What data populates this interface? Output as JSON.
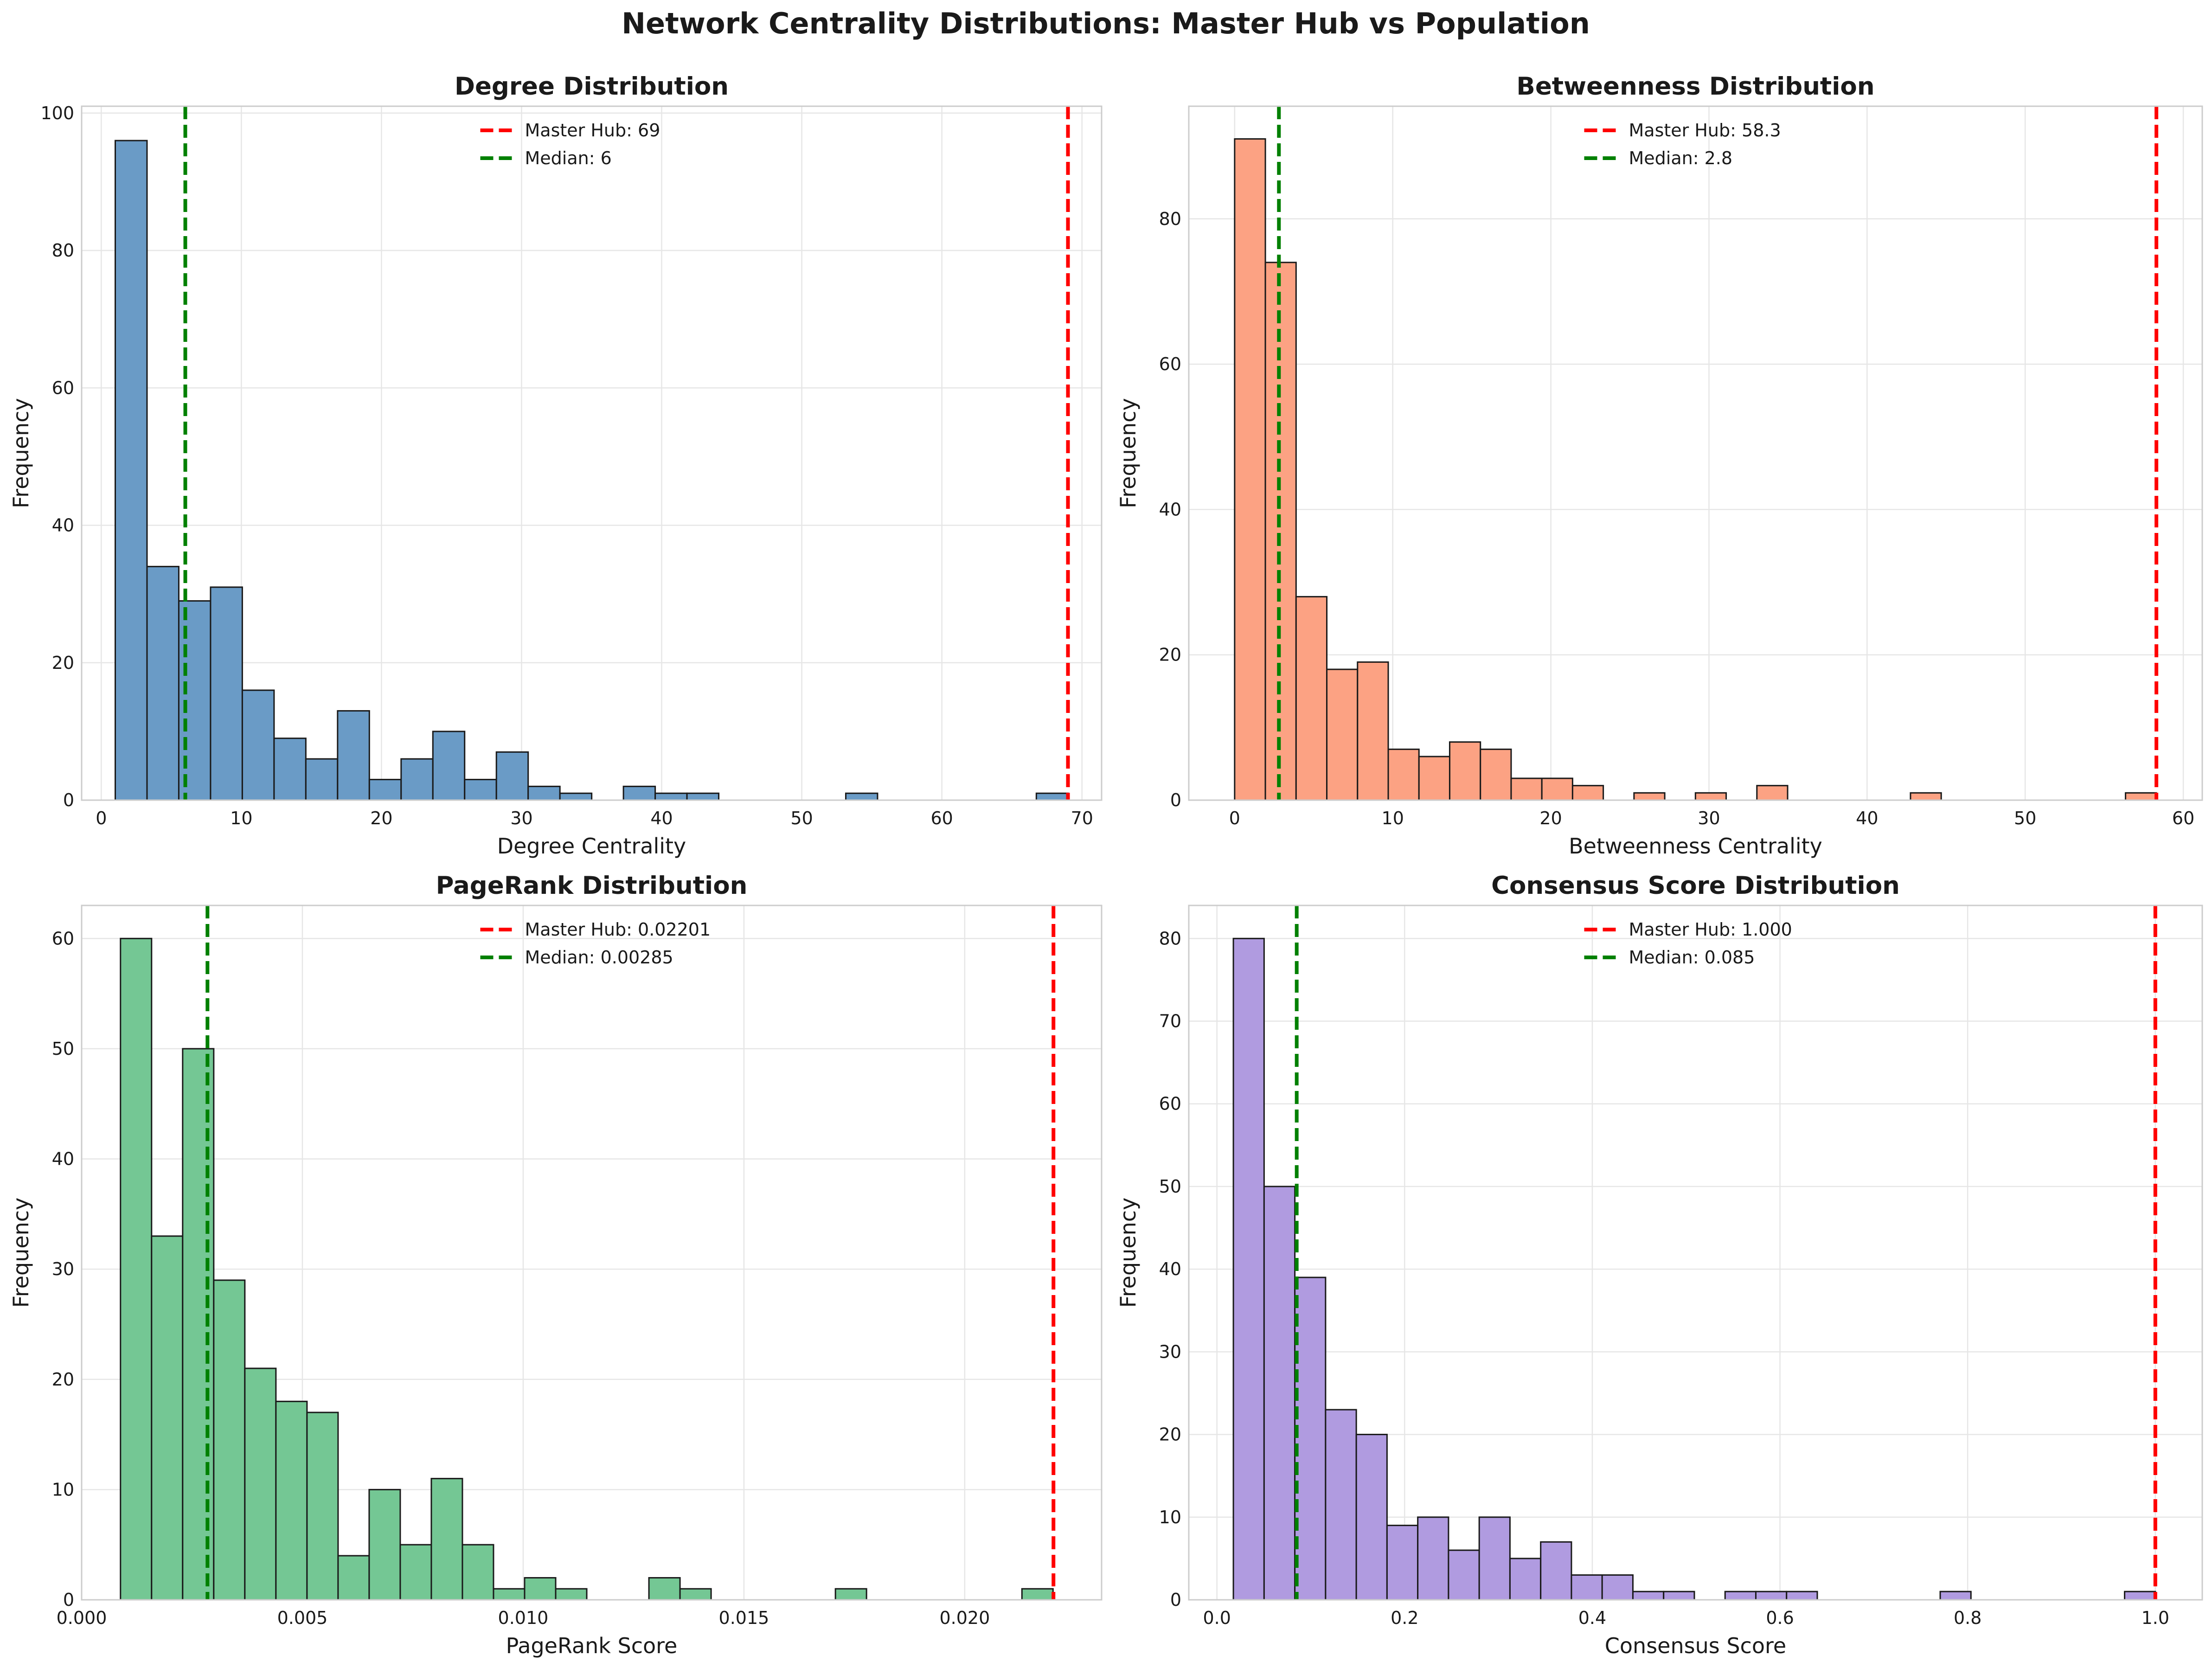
{
  "figure": {
    "title": "Network Centrality Distributions: Master Hub vs Population",
    "hub_color": "#ff0000",
    "median_color": "#008000",
    "grid": true
  },
  "chart_data": [
    {
      "type": "bar",
      "title": "Degree Distribution",
      "xlabel": "Degree Centrality",
      "ylabel": "Frequency",
      "color": "#6a9bc6",
      "xlim": [
        -1.4,
        71.4
      ],
      "ylim": [
        0,
        101
      ],
      "xticks": [
        0,
        10,
        20,
        30,
        40,
        50,
        60,
        70
      ],
      "xtick_labels": [
        "0",
        "10",
        "20",
        "30",
        "40",
        "50",
        "60",
        "70"
      ],
      "yticks": [
        0,
        20,
        40,
        60,
        80,
        100
      ],
      "bin_start": 1,
      "bin_width": 2.267,
      "counts": [
        96,
        34,
        29,
        31,
        16,
        9,
        6,
        13,
        3,
        6,
        10,
        3,
        7,
        2,
        1,
        0,
        2,
        1,
        1,
        0,
        0,
        0,
        0,
        1,
        0,
        0,
        0,
        0,
        0,
        1
      ],
      "hub_value": 69,
      "median_value": 6,
      "legend": {
        "placement": "top-center",
        "hub_label": "Master Hub: 69",
        "median_label": "Median: 6"
      }
    },
    {
      "type": "bar",
      "title": "Betweenness Distribution",
      "xlabel": "Betweenness Centrality",
      "ylabel": "Frequency",
      "color": "#fca283",
      "xlim": [
        -2.9,
        61.2
      ],
      "ylim": [
        0,
        95.5
      ],
      "xticks": [
        0,
        10,
        20,
        30,
        40,
        50,
        60
      ],
      "xtick_labels": [
        "0",
        "10",
        "20",
        "30",
        "40",
        "50",
        "60"
      ],
      "yticks": [
        0,
        20,
        40,
        60,
        80
      ],
      "bin_start": 0,
      "bin_width": 1.943,
      "counts": [
        91,
        74,
        28,
        18,
        19,
        7,
        6,
        8,
        7,
        3,
        3,
        2,
        0,
        1,
        0,
        1,
        0,
        2,
        0,
        0,
        0,
        0,
        1,
        0,
        0,
        0,
        0,
        0,
        0,
        1
      ],
      "hub_value": 58.3,
      "median_value": 2.8,
      "legend": {
        "placement": "top-center",
        "hub_label": "Master Hub: 58.3",
        "median_label": "Median: 2.8"
      }
    },
    {
      "type": "bar",
      "title": "PageRank Distribution",
      "xlabel": "PageRank Score",
      "ylabel": "Frequency",
      "color": "#74c794",
      "xlim": [
        0,
        0.0231
      ],
      "ylim": [
        0,
        63
      ],
      "xticks": [
        0,
        0.005,
        0.01,
        0.015,
        0.02
      ],
      "xtick_labels": [
        "0.000",
        "0.005",
        "0.010",
        "0.015",
        "0.020"
      ],
      "yticks": [
        0,
        10,
        20,
        30,
        40,
        50,
        60
      ],
      "bin_start": 0.00088,
      "bin_width": 0.000704,
      "counts": [
        60,
        33,
        50,
        29,
        21,
        18,
        17,
        4,
        10,
        5,
        11,
        5,
        1,
        2,
        1,
        0,
        0,
        2,
        1,
        0,
        0,
        0,
        0,
        1,
        0,
        0,
        0,
        0,
        0,
        1
      ],
      "hub_value": 0.02201,
      "median_value": 0.00285,
      "legend": {
        "placement": "top-center",
        "hub_label": "Master Hub: 0.02201",
        "median_label": "Median: 0.00285"
      }
    },
    {
      "type": "bar",
      "title": "Consensus Score Distribution",
      "xlabel": "Consensus Score",
      "ylabel": "Frequency",
      "color": "#b09be0",
      "xlim": [
        -0.03,
        1.05
      ],
      "ylim": [
        0,
        84
      ],
      "xticks": [
        0,
        0.2,
        0.4,
        0.6,
        0.8,
        1.0
      ],
      "xtick_labels": [
        "0.0",
        "0.2",
        "0.4",
        "0.6",
        "0.8",
        "1.0"
      ],
      "yticks": [
        0,
        10,
        20,
        30,
        40,
        50,
        60,
        70,
        80
      ],
      "bin_start": 0.0175,
      "bin_width": 0.03275,
      "counts": [
        80,
        50,
        39,
        23,
        20,
        9,
        10,
        6,
        10,
        5,
        7,
        3,
        3,
        1,
        1,
        0,
        1,
        1,
        1,
        0,
        0,
        0,
        0,
        1,
        0,
        0,
        0,
        0,
        0,
        1
      ],
      "hub_value": 1.0,
      "median_value": 0.085,
      "legend": {
        "placement": "top-center",
        "hub_label": "Master Hub: 1.000",
        "median_label": "Median: 0.085"
      }
    }
  ]
}
